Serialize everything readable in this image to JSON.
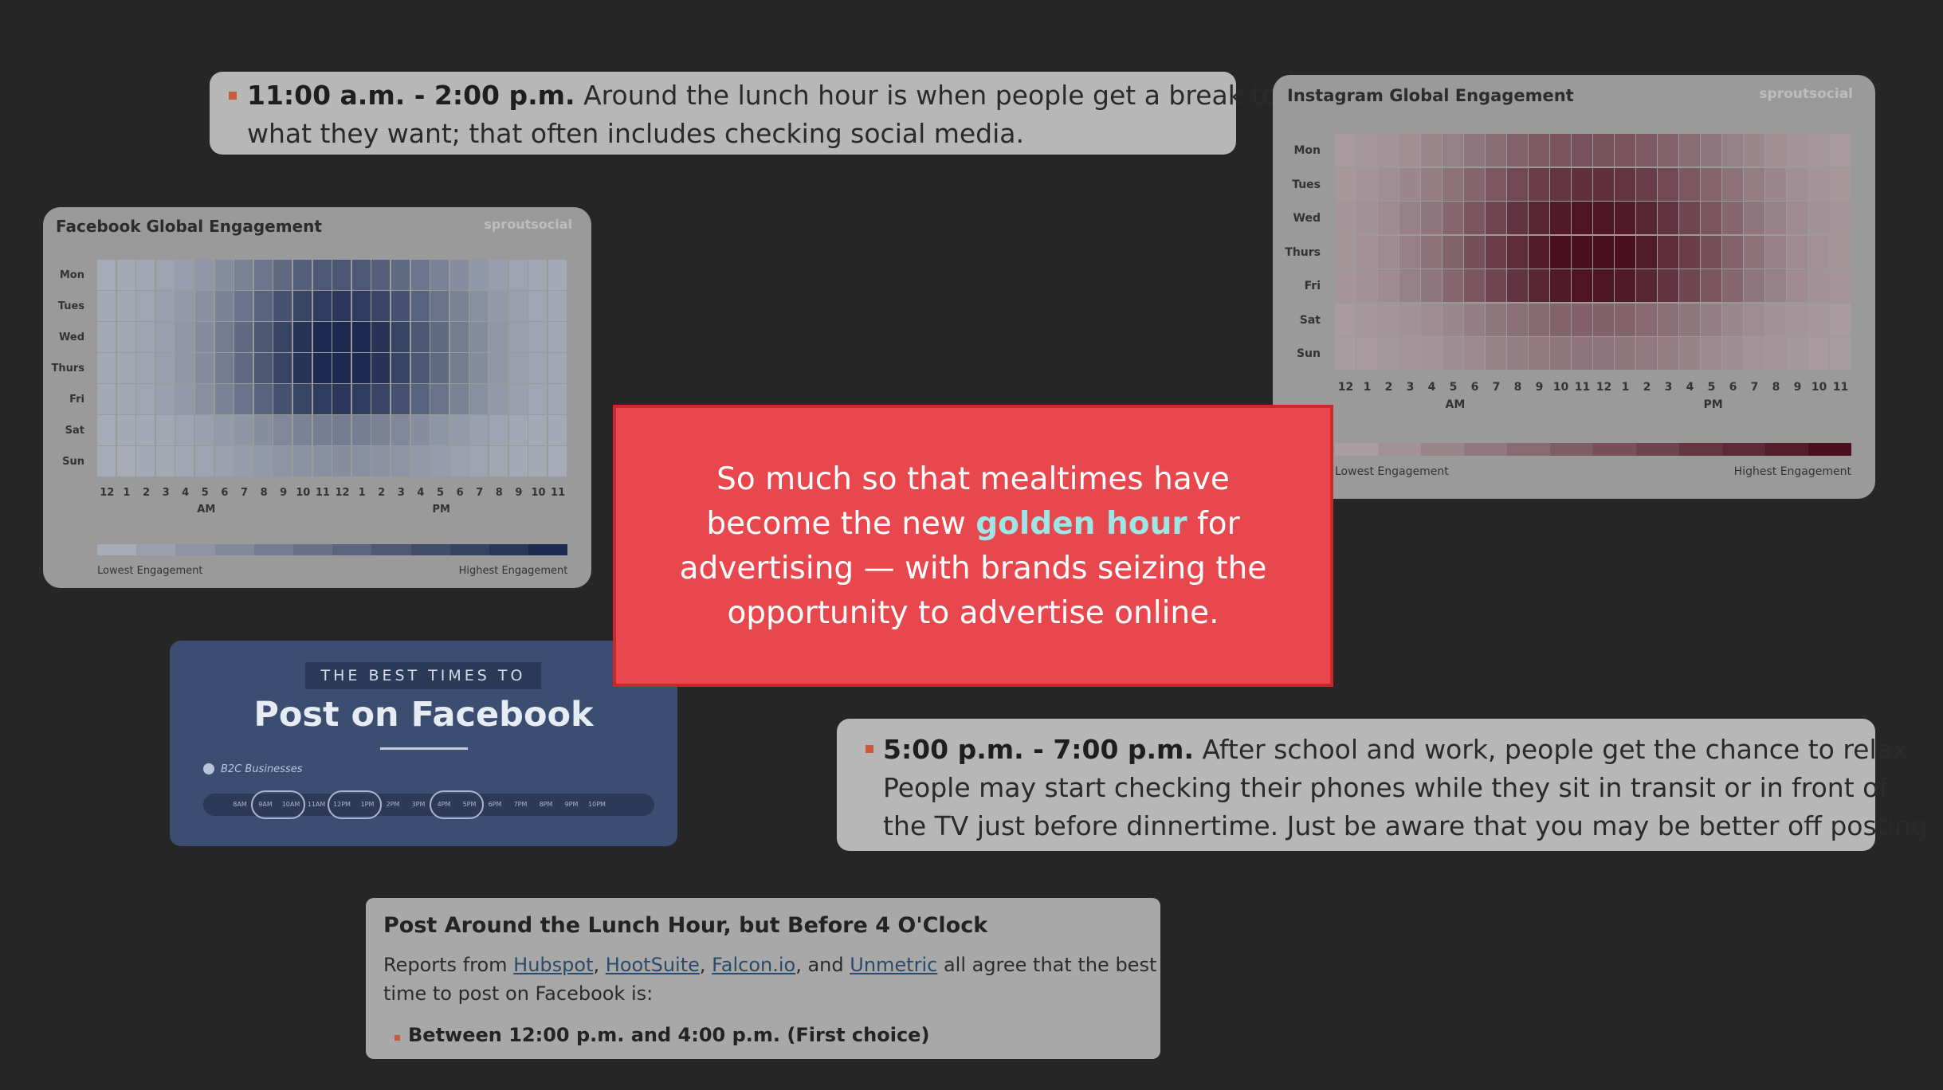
{
  "callout_top": {
    "bold": "11:00 a.m. - 2:00 p.m.",
    "line1_rest": " Around the lunch hour is when people get a break to do",
    "line2": "what they want; that often includes checking social media."
  },
  "callout_bottom": {
    "bold": "5:00 p.m. - 7:00 p.m.",
    "line1_rest": " After school and work, people get the chance to relax.",
    "line2": "People may start checking their phones while they sit in transit or in front of",
    "line3": "the TV just before dinnertime. Just be aware that you may be better off posting"
  },
  "facebook_chart": {
    "title": "Facebook Global Engagement",
    "brand": "sproutsocial",
    "days": [
      "Mon",
      "Tues",
      "Wed",
      "Thurs",
      "Fri",
      "Sat",
      "Sun"
    ],
    "hours": [
      "12",
      "1",
      "2",
      "3",
      "4",
      "5",
      "6",
      "7",
      "8",
      "9",
      "10",
      "11",
      "12",
      "1",
      "2",
      "3",
      "4",
      "5",
      "6",
      "7",
      "8",
      "9",
      "10",
      "11"
    ],
    "am_label": "AM",
    "pm_label": "PM",
    "legend_low": "Lowest Engagement",
    "legend_high": "Highest Engagement",
    "low_color": "#a7acb8",
    "high_color": "#1c2a4f"
  },
  "instagram_chart": {
    "title": "Instagram Global Engagement",
    "brand": "sproutsocial",
    "days": [
      "Mon",
      "Tues",
      "Wed",
      "Thurs",
      "Fri",
      "Sat",
      "Sun"
    ],
    "hours": [
      "12",
      "1",
      "2",
      "3",
      "4",
      "5",
      "6",
      "7",
      "8",
      "9",
      "10",
      "11",
      "12",
      "1",
      "2",
      "3",
      "4",
      "5",
      "6",
      "7",
      "8",
      "9",
      "10",
      "11"
    ],
    "am_label": "AM",
    "pm_label": "PM",
    "legend_low": "Lowest Engagement",
    "legend_high": "Highest Engagement",
    "low_color": "#ab9ea2",
    "high_color": "#4a1020"
  },
  "red_box": {
    "line1": "So much so that mealtimes have",
    "line2_before": "become the new ",
    "line2_highlight": "golden hour",
    "line2_after": " for",
    "line3": "advertising — with brands seizing the",
    "line4": "opportunity to advertise online."
  },
  "fb_infographic": {
    "eyebrow": "THE BEST TIMES TO",
    "title": "Post on Facebook",
    "tag": "B2C Businesses",
    "slots": [
      "8AM",
      "9AM",
      "10AM",
      "11AM",
      "12PM",
      "1PM",
      "2PM",
      "3PM",
      "4PM",
      "5PM",
      "6PM",
      "7PM",
      "8PM",
      "9PM",
      "10PM"
    ]
  },
  "article": {
    "heading": "Post Around the Lunch Hour, but Before 4 O'Clock",
    "reports_prefix": "Reports from ",
    "link1": "Hubspot",
    "link2": "HootSuite",
    "link3": "Falcon.io",
    "link4": "Unmetric",
    "sep1": ", ",
    "sep2": ", ",
    "sep3": ", and ",
    "reports_suffix": " all agree that the best",
    "line2": "time to post on Facebook is:",
    "choice": "Between 12:00 p.m. and 4:00 p.m. (First choice)"
  }
}
